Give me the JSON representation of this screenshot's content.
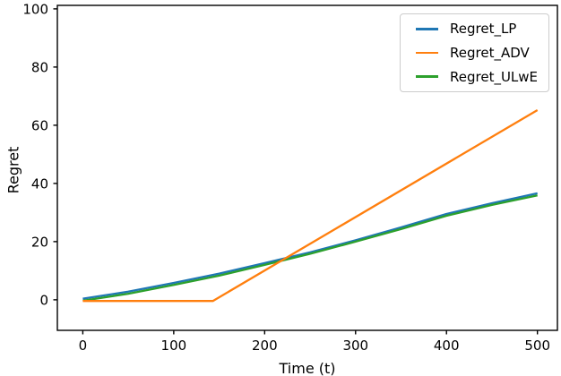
{
  "figure": {
    "background": "#ffffff",
    "spine_color": "#000000"
  },
  "chart_data": {
    "type": "line",
    "title": "",
    "xlabel": "Time (t)",
    "ylabel": "Regret",
    "xlim": [
      -28,
      522
    ],
    "ylim": [
      -10.5,
      101.2
    ],
    "xticks": [
      0,
      100,
      200,
      300,
      400,
      500
    ],
    "yticks": [
      0,
      20,
      40,
      60,
      80,
      100
    ],
    "grid": false,
    "legend_position": "upper right",
    "legend_border_color": "#cccccc",
    "draw_order": [
      0,
      2,
      1
    ],
    "series": [
      {
        "name": "Regret_LP",
        "color": "#1f77b4",
        "points": [
          [
            0,
            0.4
          ],
          [
            50,
            2.8
          ],
          [
            100,
            5.8
          ],
          [
            150,
            9.0
          ],
          [
            200,
            12.6
          ],
          [
            250,
            16.3
          ],
          [
            300,
            20.5
          ],
          [
            350,
            24.9
          ],
          [
            400,
            29.5
          ],
          [
            450,
            33.2
          ],
          [
            500,
            36.6
          ]
        ]
      },
      {
        "name": "Regret_ADV",
        "color": "#ff7f0e",
        "points": [
          [
            0,
            -0.4
          ],
          [
            143,
            -0.4
          ],
          [
            500,
            65.2
          ]
        ]
      },
      {
        "name": "Regret_ULwE",
        "color": "#2ca02c",
        "points": [
          [
            0,
            -0.3
          ],
          [
            50,
            2.1
          ],
          [
            100,
            5.1
          ],
          [
            150,
            8.3
          ],
          [
            200,
            12.0
          ],
          [
            250,
            15.8
          ],
          [
            300,
            20.0
          ],
          [
            350,
            24.3
          ],
          [
            400,
            28.9
          ],
          [
            450,
            32.6
          ],
          [
            500,
            35.9
          ]
        ]
      }
    ]
  }
}
